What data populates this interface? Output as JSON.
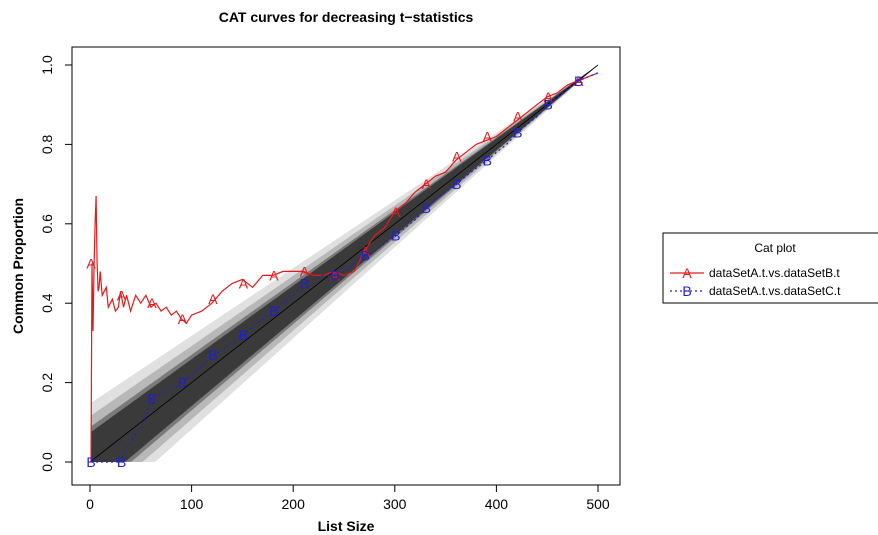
{
  "chart_data": {
    "type": "line",
    "title": "CAT curves for decreasing t−statistics",
    "xlabel": "List Size",
    "ylabel": "Common Proportion",
    "xlim": [
      0,
      500
    ],
    "ylim": [
      0,
      1
    ],
    "x_ticks": [
      0,
      100,
      200,
      300,
      400,
      500
    ],
    "y_ticks": [
      0.0,
      0.2,
      0.4,
      0.6,
      0.8,
      1.0
    ],
    "x_tick_labels": [
      "0",
      "100",
      "200",
      "300",
      "400",
      "500"
    ],
    "y_tick_labels": [
      "0.0",
      "0.2",
      "0.4",
      "0.6",
      "0.8",
      "1.0"
    ],
    "grid": false,
    "legend": {
      "title": "Cat plot",
      "placement": "right"
    },
    "probability_bands": {
      "levels": [
        0.999,
        0.99,
        0.95,
        0.9
      ],
      "colors": [
        "#e0e0e0",
        "#b8b8b8",
        "#7a7a7a",
        "#3a3a3a"
      ]
    },
    "reference_line": {
      "from": [
        0,
        0
      ],
      "to": [
        500,
        1
      ]
    },
    "series": [
      {
        "name": "dataSetA.t.vs.dataSetB.t",
        "marker": "A",
        "color": "#e31a1c",
        "dash": "solid",
        "x": [
          1,
          2,
          3,
          4,
          5,
          6,
          7,
          8,
          9,
          10,
          12,
          14,
          16,
          18,
          20,
          22,
          25,
          28,
          30,
          33,
          36,
          40,
          45,
          50,
          55,
          60,
          65,
          70,
          75,
          80,
          85,
          90,
          95,
          100,
          110,
          120,
          130,
          140,
          150,
          160,
          170,
          180,
          190,
          200,
          210,
          220,
          230,
          240,
          250,
          260,
          270,
          280,
          290,
          300,
          310,
          320,
          330,
          340,
          350,
          360,
          370,
          380,
          390,
          400,
          410,
          420,
          430,
          440,
          450,
          460,
          470,
          480,
          490,
          500
        ],
        "y": [
          0.0,
          0.5,
          0.33,
          0.5,
          0.6,
          0.67,
          0.5,
          0.43,
          0.44,
          0.48,
          0.42,
          0.43,
          0.44,
          0.39,
          0.4,
          0.41,
          0.38,
          0.39,
          0.43,
          0.39,
          0.42,
          0.38,
          0.42,
          0.4,
          0.42,
          0.39,
          0.4,
          0.38,
          0.39,
          0.37,
          0.38,
          0.36,
          0.35,
          0.37,
          0.38,
          0.4,
          0.43,
          0.45,
          0.46,
          0.44,
          0.47,
          0.47,
          0.48,
          0.48,
          0.48,
          0.47,
          0.47,
          0.48,
          0.47,
          0.48,
          0.53,
          0.57,
          0.59,
          0.63,
          0.65,
          0.68,
          0.7,
          0.72,
          0.73,
          0.76,
          0.78,
          0.8,
          0.81,
          0.82,
          0.84,
          0.86,
          0.88,
          0.9,
          0.92,
          0.93,
          0.95,
          0.96,
          0.97,
          0.98
        ],
        "marker_x": [
          1,
          31,
          61,
          91,
          121,
          151,
          181,
          211,
          241,
          271,
          301,
          331,
          361,
          391,
          421,
          451,
          481
        ],
        "marker_y": [
          0.5,
          0.42,
          0.4,
          0.36,
          0.41,
          0.45,
          0.47,
          0.48,
          0.47,
          0.53,
          0.63,
          0.7,
          0.77,
          0.82,
          0.87,
          0.92,
          0.96
        ]
      },
      {
        "name": "dataSetA.t.vs.dataSetC.t",
        "marker": "B",
        "color": "#1f1fd4",
        "dash": "dashed",
        "x": [
          1,
          5,
          10,
          15,
          20,
          25,
          31,
          35,
          40,
          45,
          50,
          55,
          61,
          65,
          70,
          75,
          80,
          85,
          91,
          100,
          110,
          121,
          130,
          140,
          151,
          160,
          170,
          181,
          190,
          200,
          211,
          220,
          230,
          241,
          250,
          260,
          271,
          280,
          290,
          301,
          310,
          320,
          331,
          340,
          350,
          361,
          370,
          380,
          391,
          400,
          410,
          421,
          430,
          440,
          451,
          460,
          470,
          481,
          490,
          500
        ],
        "y": [
          0.0,
          0.0,
          0.0,
          0.0,
          0.0,
          0.0,
          0.0,
          0.03,
          0.05,
          0.07,
          0.08,
          0.12,
          0.16,
          0.17,
          0.17,
          0.18,
          0.19,
          0.19,
          0.2,
          0.22,
          0.24,
          0.27,
          0.28,
          0.3,
          0.32,
          0.34,
          0.36,
          0.38,
          0.4,
          0.42,
          0.45,
          0.46,
          0.47,
          0.47,
          0.48,
          0.5,
          0.52,
          0.53,
          0.55,
          0.57,
          0.59,
          0.61,
          0.64,
          0.66,
          0.68,
          0.7,
          0.72,
          0.74,
          0.76,
          0.78,
          0.8,
          0.83,
          0.85,
          0.87,
          0.9,
          0.92,
          0.94,
          0.96,
          0.97,
          0.98
        ],
        "marker_x": [
          1,
          31,
          61,
          91,
          121,
          151,
          181,
          211,
          241,
          271,
          301,
          331,
          361,
          391,
          421,
          451,
          481
        ],
        "marker_y": [
          0.0,
          0.0,
          0.16,
          0.2,
          0.27,
          0.32,
          0.38,
          0.45,
          0.47,
          0.52,
          0.57,
          0.64,
          0.7,
          0.76,
          0.83,
          0.9,
          0.96
        ]
      }
    ]
  }
}
